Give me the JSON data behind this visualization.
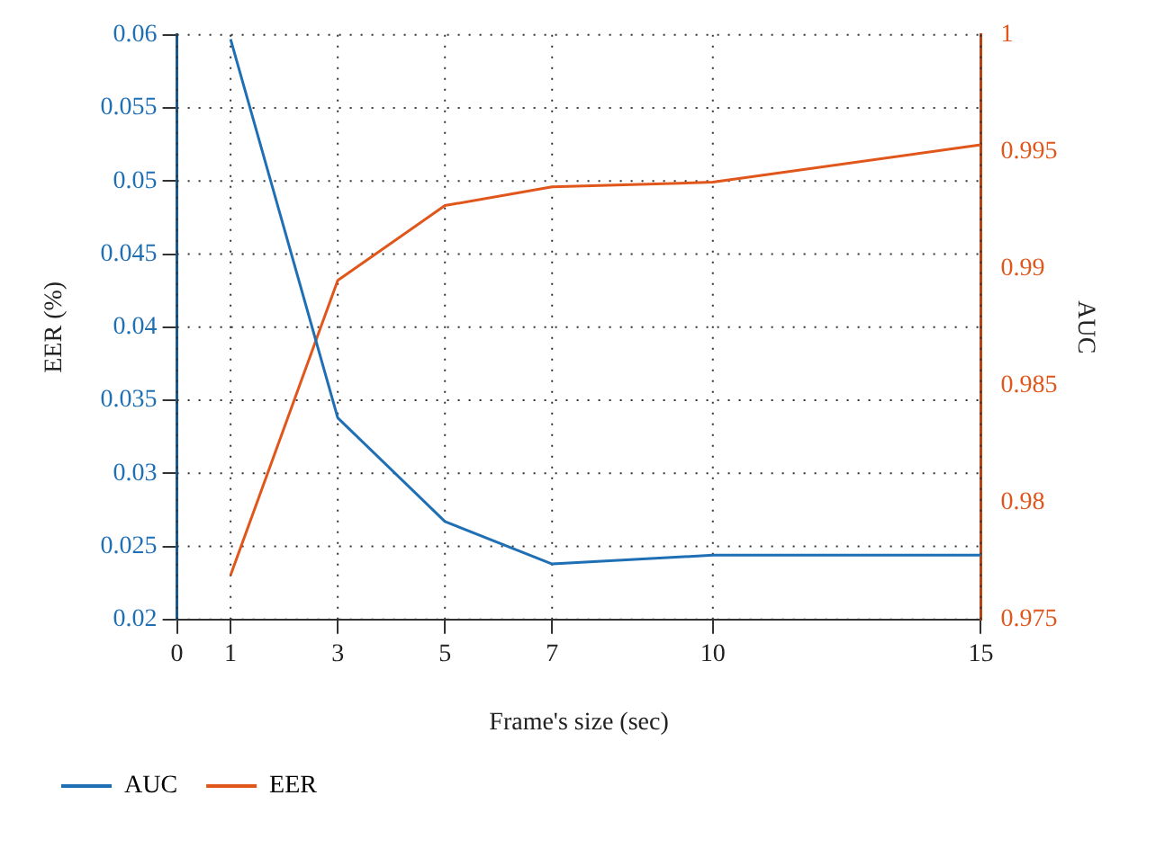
{
  "chart_data": {
    "type": "line",
    "xlabel": "Frame's size (sec)",
    "ylabel": "EER (%)",
    "y2label": "AUC",
    "x": [
      1,
      3,
      5,
      7,
      10,
      15
    ],
    "series": [
      {
        "name": "AUC",
        "color": "#1f6fb4",
        "values": [
          0.0597,
          0.0338,
          0.0267,
          0.0238,
          0.0244,
          0.0244
        ]
      },
      {
        "name": "EER",
        "color": "#e0561b",
        "axis": "y2",
        "values": [
          0.9769,
          0.9895,
          0.9927,
          0.9935,
          0.9937,
          0.9953
        ]
      }
    ],
    "xlim": [
      0,
      15
    ],
    "xticks": [
      0,
      1,
      3,
      5,
      7,
      10,
      15
    ],
    "ylim": [
      0.02,
      0.06
    ],
    "yticks": [
      0.02,
      0.025,
      0.03,
      0.035,
      0.04,
      0.045,
      0.05,
      0.055,
      0.06
    ],
    "y2lim": [
      0.975,
      1
    ],
    "y2ticks": [
      0.975,
      0.98,
      0.985,
      0.99,
      0.995,
      1
    ],
    "grid": true,
    "line_style": "solid",
    "marker": "none",
    "legend": "bottom left"
  }
}
